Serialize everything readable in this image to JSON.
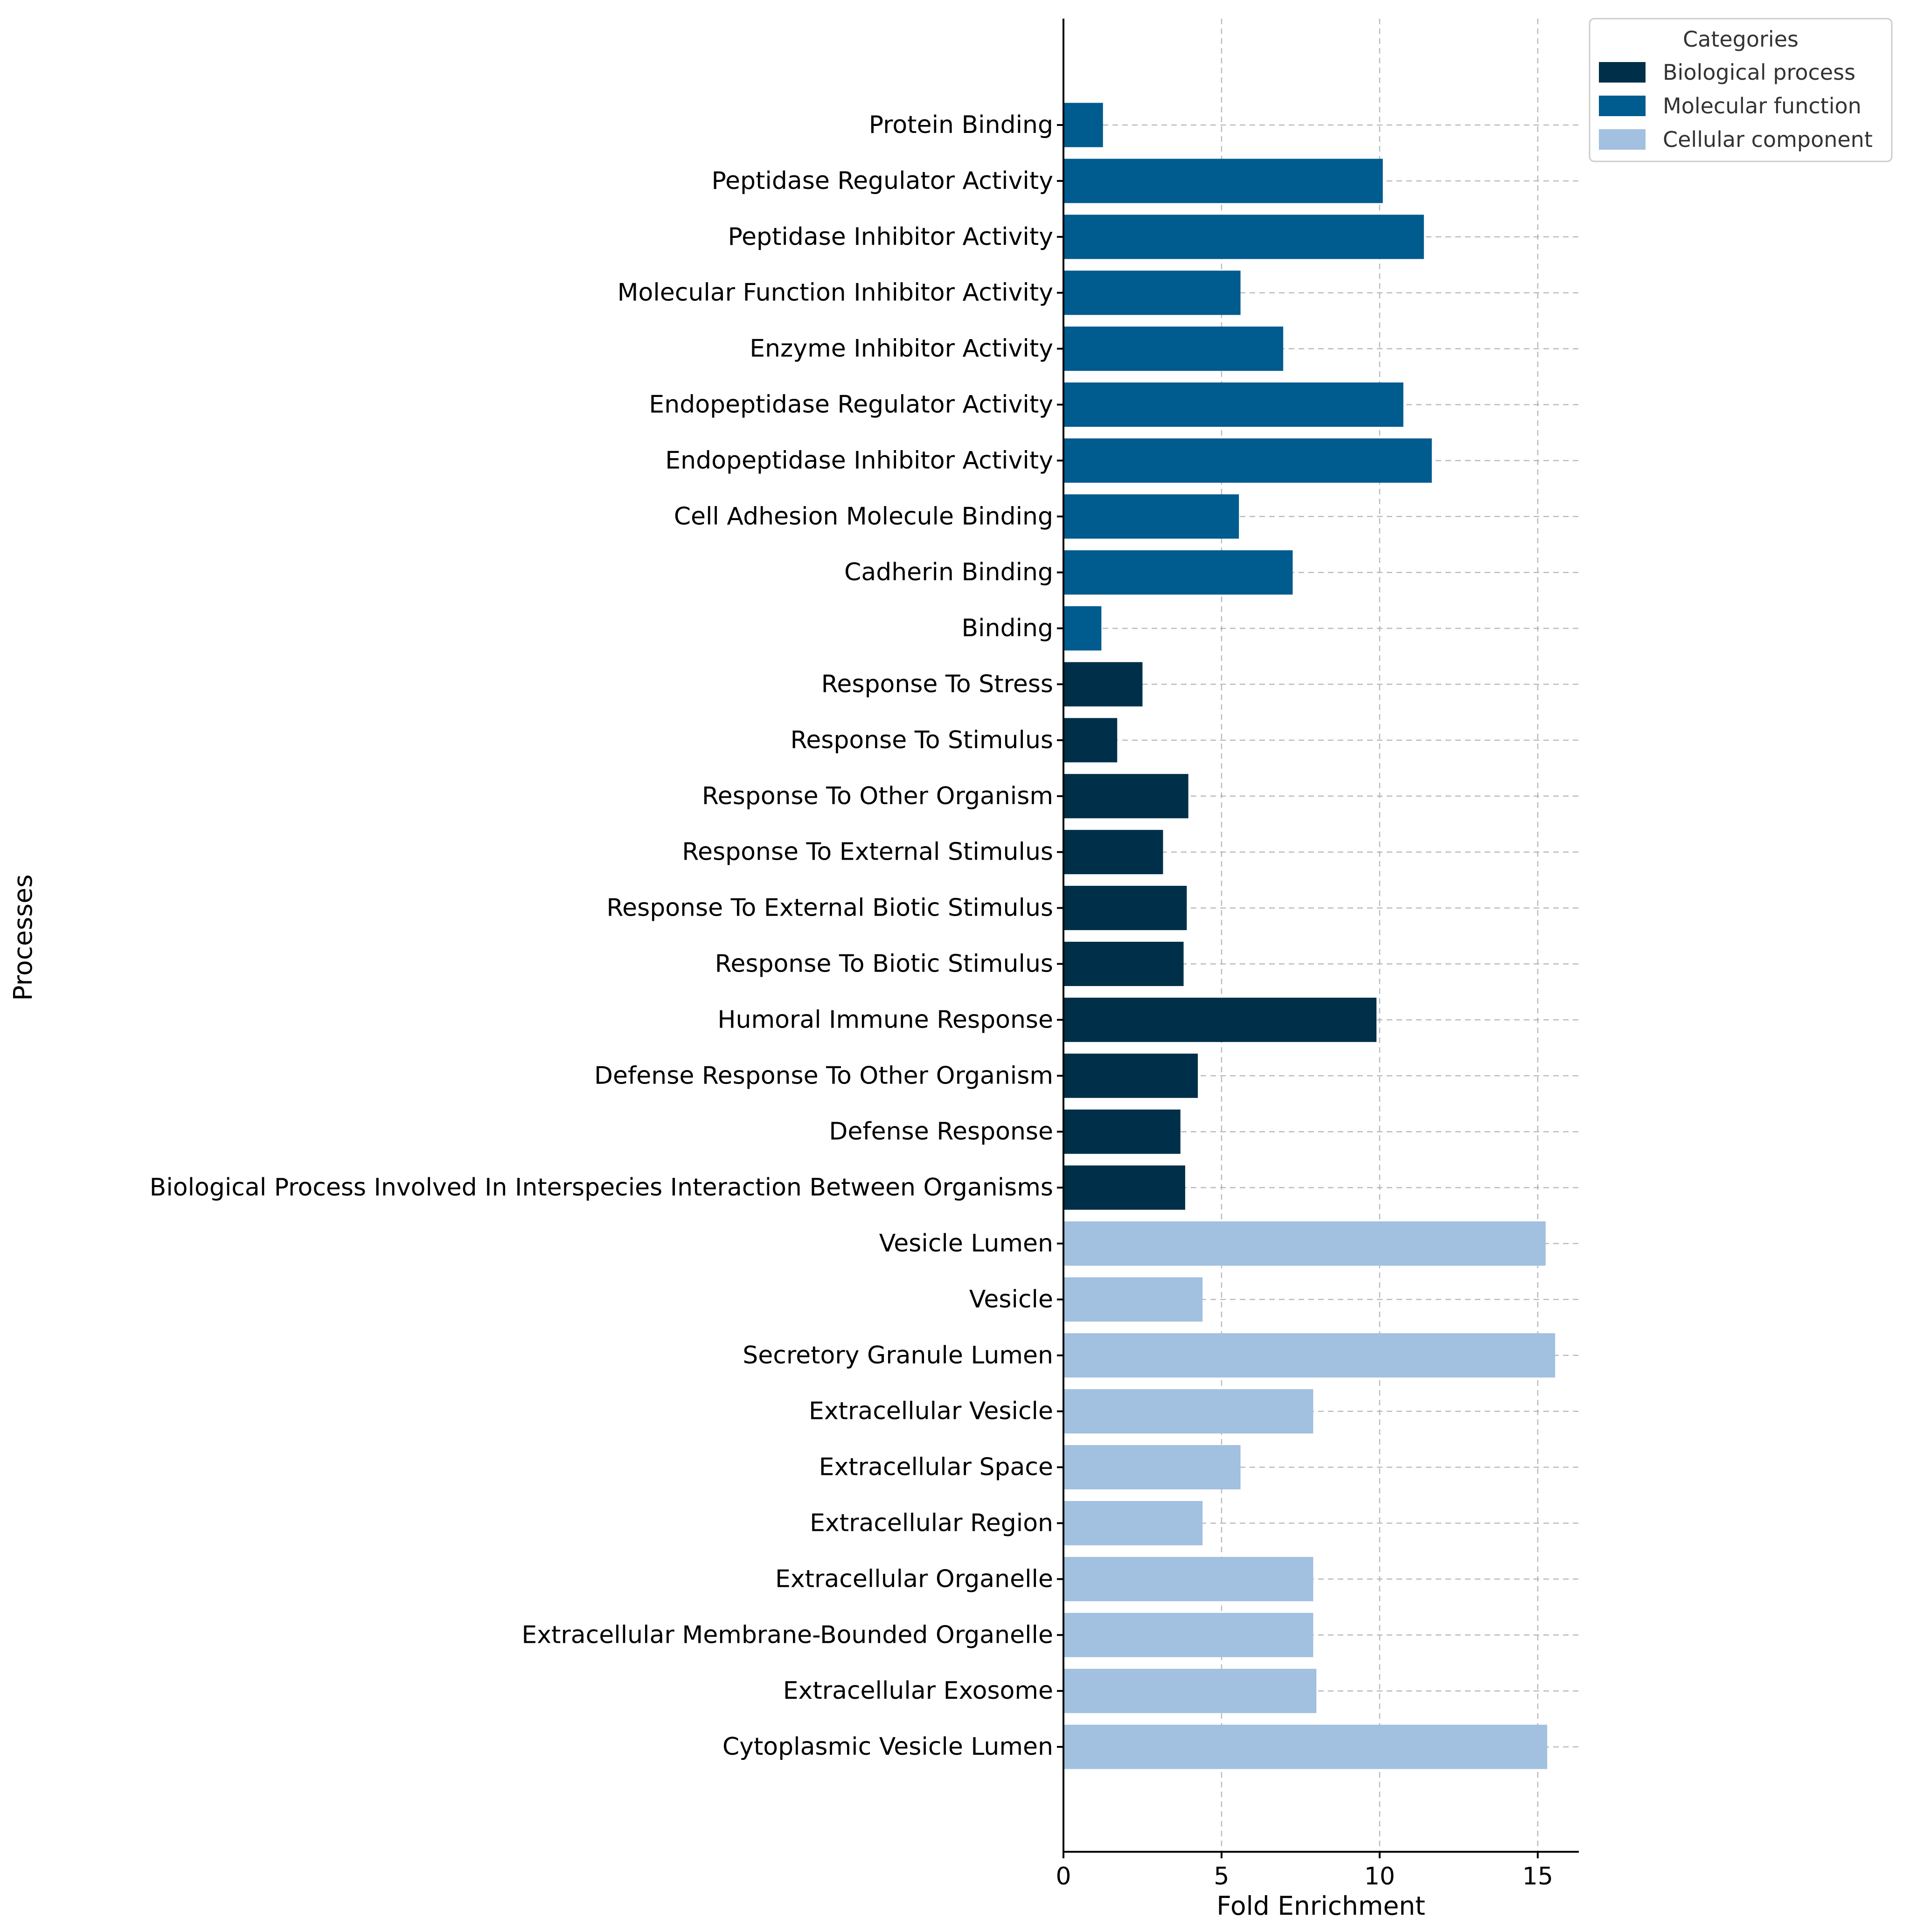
{
  "chart_data": {
    "type": "bar",
    "orientation": "horizontal",
    "xlabel": "Fold Enrichment",
    "ylabel": "Processes",
    "xlim": [
      0,
      16.3
    ],
    "xticks": [
      0,
      5,
      10,
      15
    ],
    "grid": true,
    "legend": {
      "title": "Categories",
      "placement": "top-right",
      "entries": [
        {
          "name": "Biological process",
          "color": "#003049"
        },
        {
          "name": "Molecular function",
          "color": "#005b8f"
        },
        {
          "name": "Cellular component",
          "color": "#a2c0df"
        }
      ]
    },
    "categories": [
      "Protein Binding",
      "Peptidase Regulator Activity",
      "Peptidase Inhibitor Activity",
      "Molecular Function Inhibitor Activity",
      "Enzyme Inhibitor Activity",
      "Endopeptidase Regulator Activity",
      "Endopeptidase Inhibitor Activity",
      "Cell Adhesion Molecule Binding",
      "Cadherin Binding",
      "Binding",
      "Response To Stress",
      "Response To Stimulus",
      "Response To Other Organism",
      "Response To External Stimulus",
      "Response To External Biotic Stimulus",
      "Response To Biotic Stimulus",
      "Humoral Immune Response",
      "Defense Response To Other Organism",
      "Defense Response",
      "Biological Process Involved In Interspecies Interaction Between Organisms",
      "Vesicle Lumen",
      "Vesicle",
      "Secretory Granule Lumen",
      "Extracellular Vesicle",
      "Extracellular Space",
      "Extracellular Region",
      "Extracellular Organelle",
      "Extracellular Membrane-Bounded Organelle",
      "Extracellular Exosome",
      "Cytoplasmic Vesicle Lumen"
    ],
    "values": [
      1.25,
      10.1,
      11.4,
      5.6,
      6.95,
      10.75,
      11.65,
      5.55,
      7.25,
      1.2,
      2.5,
      1.7,
      3.95,
      3.15,
      3.9,
      3.8,
      9.9,
      4.25,
      3.7,
      3.85,
      15.25,
      4.4,
      15.55,
      7.9,
      5.6,
      4.4,
      7.9,
      7.9,
      8.0,
      15.3
    ],
    "groups": [
      "Molecular function",
      "Molecular function",
      "Molecular function",
      "Molecular function",
      "Molecular function",
      "Molecular function",
      "Molecular function",
      "Molecular function",
      "Molecular function",
      "Molecular function",
      "Biological process",
      "Biological process",
      "Biological process",
      "Biological process",
      "Biological process",
      "Biological process",
      "Biological process",
      "Biological process",
      "Biological process",
      "Biological process",
      "Cellular component",
      "Cellular component",
      "Cellular component",
      "Cellular component",
      "Cellular component",
      "Cellular component",
      "Cellular component",
      "Cellular component",
      "Cellular component",
      "Cellular component"
    ]
  }
}
